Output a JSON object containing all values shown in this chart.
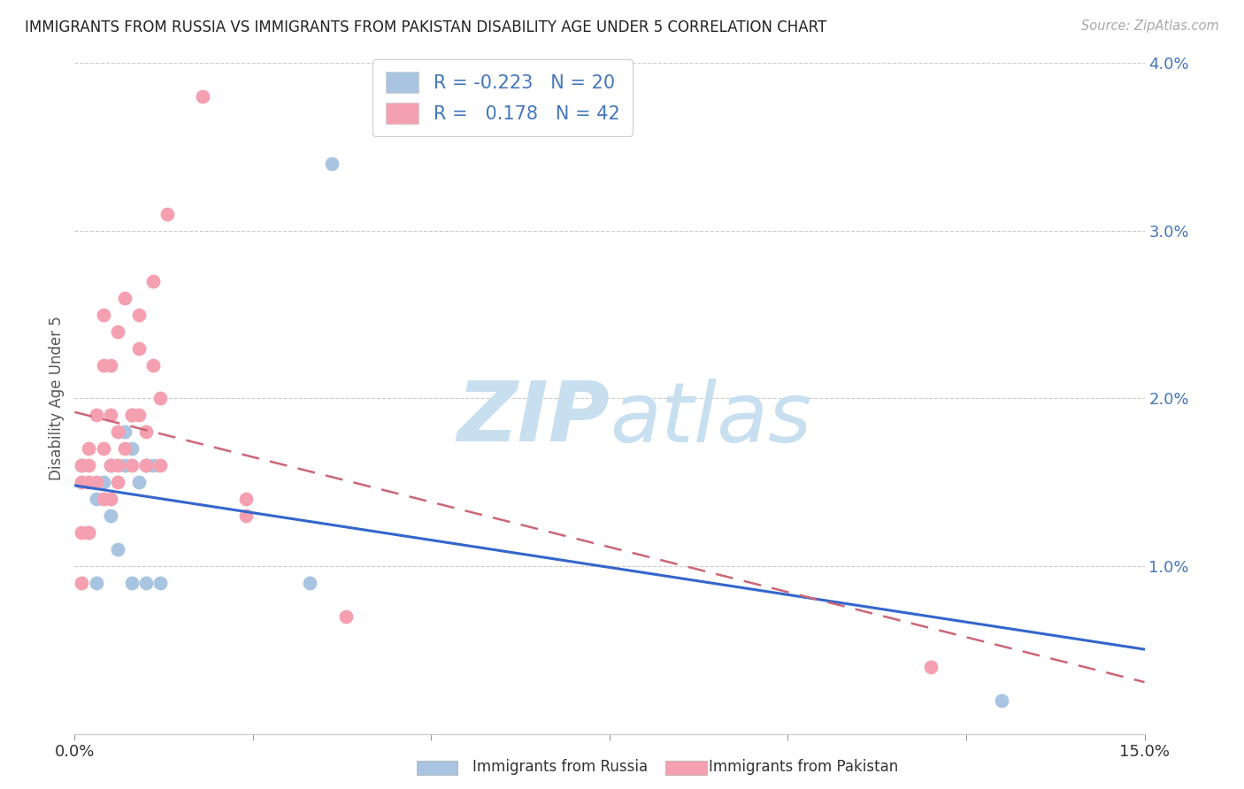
{
  "title": "IMMIGRANTS FROM RUSSIA VS IMMIGRANTS FROM PAKISTAN DISABILITY AGE UNDER 5 CORRELATION CHART",
  "source": "Source: ZipAtlas.com",
  "ylabel": "Disability Age Under 5",
  "xlim": [
    0.0,
    0.15
  ],
  "ylim": [
    0.0,
    0.04
  ],
  "xticks": [
    0.0,
    0.025,
    0.05,
    0.075,
    0.1,
    0.125,
    0.15
  ],
  "xticklabels_ends": [
    "0.0%",
    "15.0%"
  ],
  "yticks": [
    0.0,
    0.01,
    0.02,
    0.03,
    0.04
  ],
  "yticklabels": [
    "",
    "1.0%",
    "2.0%",
    "3.0%",
    "4.0%"
  ],
  "russia_R": -0.223,
  "russia_N": 20,
  "pakistan_R": 0.178,
  "pakistan_N": 42,
  "russia_color": "#a8c4e0",
  "pakistan_color": "#f4a0b0",
  "russia_line_color": "#3366cc",
  "pakistan_line_color": "#cc6677",
  "grid_color": "#cccccc",
  "watermark_zip": "ZIP",
  "watermark_atlas": "atlas",
  "watermark_color": "#c8dff0",
  "legend_text_color": "#4477bb",
  "russia_x": [
    0.001,
    0.002,
    0.003,
    0.003,
    0.004,
    0.005,
    0.005,
    0.006,
    0.007,
    0.007,
    0.008,
    0.008,
    0.009,
    0.01,
    0.01,
    0.011,
    0.012,
    0.033,
    0.036,
    0.13
  ],
  "russia_y": [
    0.016,
    0.012,
    0.014,
    0.009,
    0.015,
    0.013,
    0.016,
    0.011,
    0.016,
    0.018,
    0.009,
    0.017,
    0.015,
    0.016,
    0.009,
    0.016,
    0.009,
    0.009,
    0.034,
    0.002
  ],
  "pakistan_x": [
    0.001,
    0.001,
    0.001,
    0.001,
    0.002,
    0.002,
    0.002,
    0.002,
    0.003,
    0.003,
    0.004,
    0.004,
    0.004,
    0.004,
    0.005,
    0.005,
    0.005,
    0.005,
    0.006,
    0.006,
    0.006,
    0.006,
    0.007,
    0.007,
    0.008,
    0.008,
    0.008,
    0.009,
    0.009,
    0.009,
    0.01,
    0.01,
    0.011,
    0.011,
    0.012,
    0.012,
    0.013,
    0.018,
    0.024,
    0.024,
    0.038,
    0.12
  ],
  "pakistan_y": [
    0.015,
    0.009,
    0.016,
    0.012,
    0.016,
    0.015,
    0.017,
    0.012,
    0.019,
    0.015,
    0.017,
    0.022,
    0.014,
    0.025,
    0.016,
    0.019,
    0.014,
    0.022,
    0.016,
    0.018,
    0.015,
    0.024,
    0.026,
    0.017,
    0.019,
    0.016,
    0.019,
    0.025,
    0.019,
    0.023,
    0.016,
    0.018,
    0.027,
    0.022,
    0.016,
    0.02,
    0.031,
    0.038,
    0.013,
    0.014,
    0.007,
    0.004
  ]
}
